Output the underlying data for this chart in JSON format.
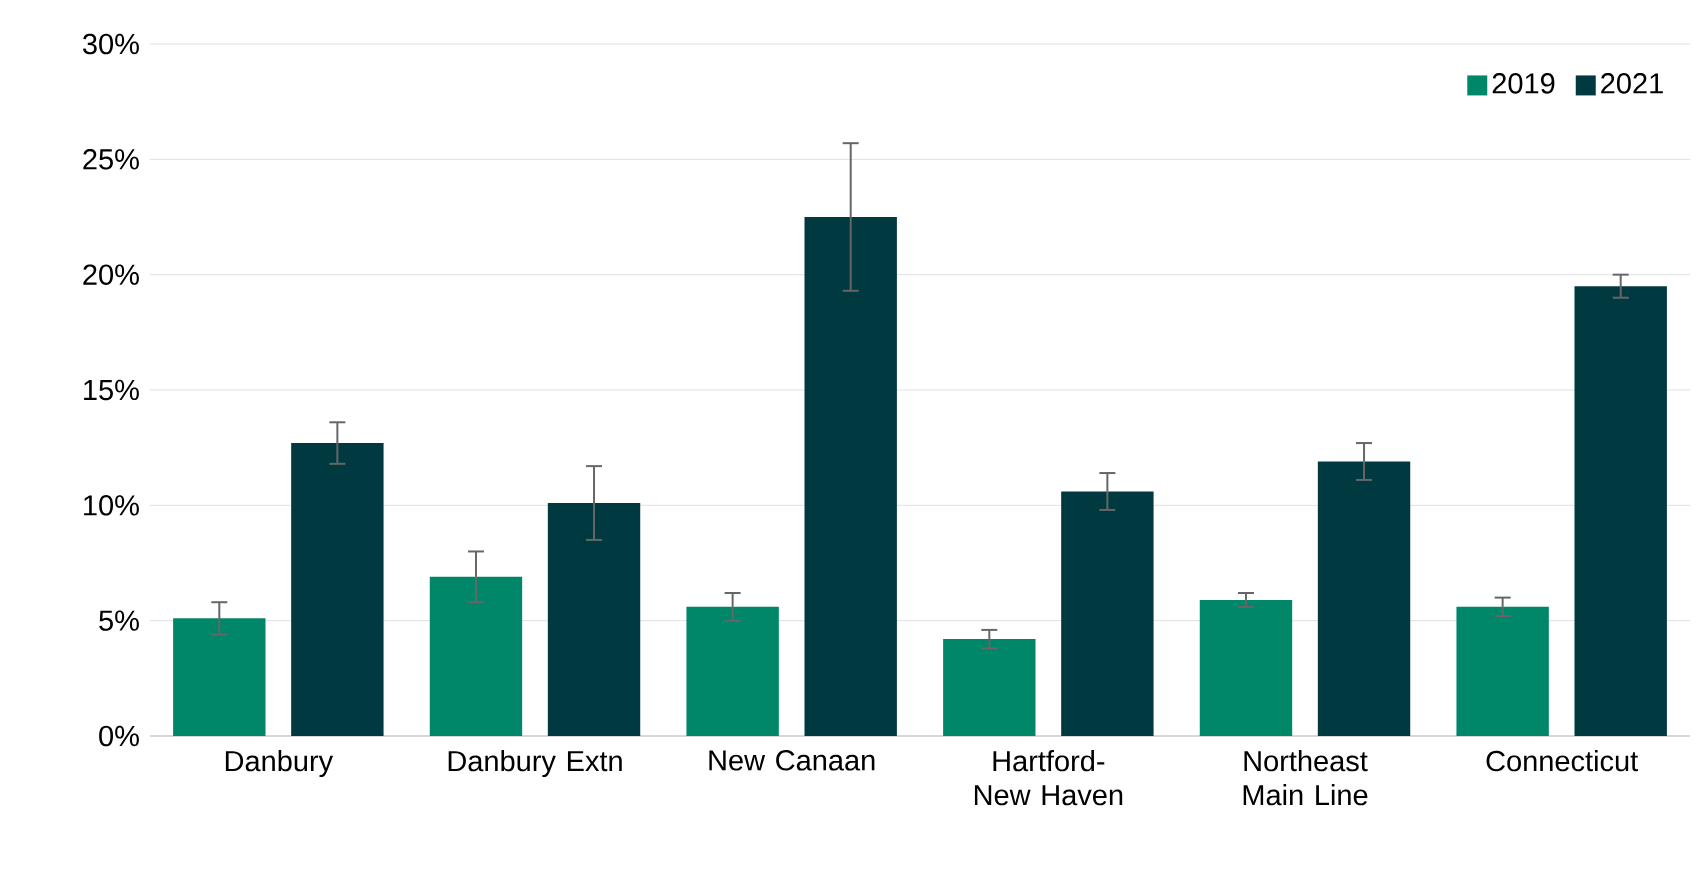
{
  "chart_data": {
    "type": "bar",
    "categories": [
      "Danbury",
      "Danbury Extn",
      "New Canaan",
      "Hartford-New Haven",
      "Northeast Main Line",
      "Connecticut"
    ],
    "series": [
      {
        "name": "2019",
        "color": "#00876a",
        "values": [
          5.1,
          6.9,
          5.6,
          4.2,
          5.9,
          5.6
        ],
        "errors": [
          0.7,
          1.1,
          0.6,
          0.4,
          0.3,
          0.4
        ]
      },
      {
        "name": "2021",
        "color": "#003a40",
        "values": [
          12.7,
          10.1,
          22.5,
          10.6,
          11.9,
          19.5
        ],
        "errors": [
          0.9,
          1.6,
          3.2,
          0.8,
          0.8,
          0.5
        ]
      }
    ],
    "ylim": [
      0,
      30
    ],
    "yticks": [
      {
        "value": 0,
        "label": "0%"
      },
      {
        "value": 5,
        "label": "5%"
      },
      {
        "value": 10,
        "label": "10%"
      },
      {
        "value": 15,
        "label": "15%"
      },
      {
        "value": 20,
        "label": "20%"
      },
      {
        "value": 25,
        "label": "25%"
      },
      {
        "value": 30,
        "label": "30%"
      }
    ],
    "grid": "y",
    "legend": "top right"
  }
}
